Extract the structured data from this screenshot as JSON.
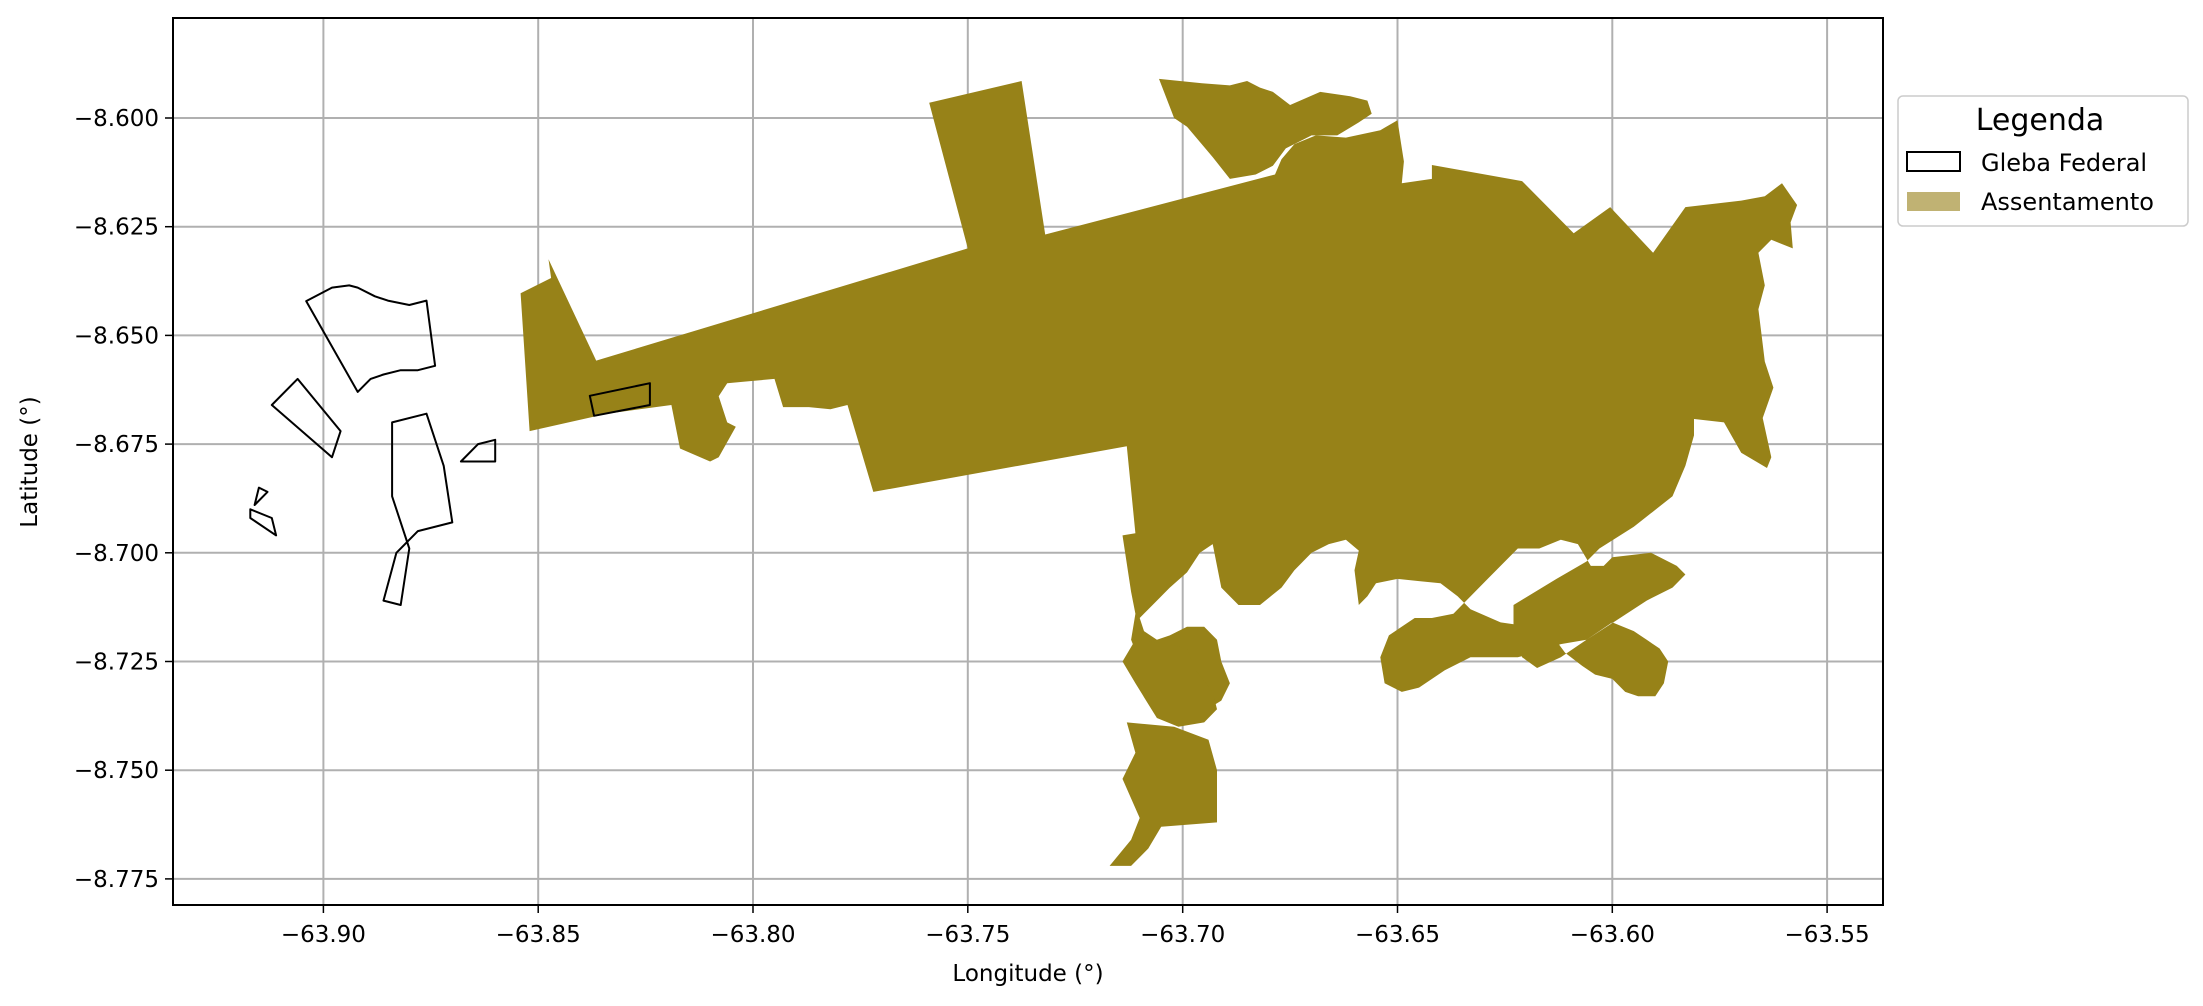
{
  "map": {
    "xlabel": "Longitude (°)",
    "ylabel": "Latitude (°)",
    "x_ticks": [
      -63.9,
      -63.85,
      -63.8,
      -63.75,
      -63.7,
      -63.65,
      -63.6,
      -63.55
    ],
    "x_tick_labels": [
      "−63.90",
      "−63.85",
      "−63.80",
      "−63.75",
      "−63.70",
      "−63.65",
      "−63.60",
      "−63.55"
    ],
    "y_ticks": [
      -8.6,
      -8.625,
      -8.65,
      -8.675,
      -8.7,
      -8.725,
      -8.75,
      -8.775
    ],
    "y_tick_labels": [
      "−8.600",
      "−8.625",
      "−8.650",
      "−8.675",
      "−8.700",
      "−8.725",
      "−8.750",
      "−8.775"
    ],
    "xlim": [
      -63.935,
      -63.537
    ],
    "ylim": [
      -8.781,
      -8.577
    ],
    "grid": true,
    "legend": {
      "title": "Legenda",
      "placement": "outside-right-top",
      "entries": [
        {
          "label": "Gleba Federal",
          "style": "outline",
          "color": "#000000"
        },
        {
          "label": "Assentamento",
          "style": "fill",
          "color": "#c0b273"
        }
      ]
    },
    "colors": {
      "assentamento_fill": "#978218",
      "gleba_stroke": "#000000",
      "grid": "#b0b0b0"
    },
    "layers": {
      "assentamento": [
        [
          [
            -63.8541,
            -8.6403
          ],
          [
            -63.847,
            -8.6368
          ],
          [
            -63.8476,
            -8.6325
          ],
          [
            -63.8365,
            -8.6558
          ],
          [
            -63.75,
            -8.63
          ],
          [
            -63.759,
            -8.5965
          ],
          [
            -63.7375,
            -8.5915
          ],
          [
            -63.732,
            -8.6268
          ],
          [
            -63.6785,
            -8.613
          ],
          [
            -63.677,
            -8.6095
          ],
          [
            -63.674,
            -8.606
          ],
          [
            -63.669,
            -8.604
          ],
          [
            -63.662,
            -8.6045
          ],
          [
            -63.654,
            -8.6028
          ],
          [
            -63.65,
            -8.6005
          ],
          [
            -63.6495,
            -8.6037
          ],
          [
            -63.6485,
            -8.61
          ],
          [
            -63.649,
            -8.615
          ],
          [
            -63.642,
            -8.614
          ],
          [
            -63.642,
            -8.6108
          ],
          [
            -63.621,
            -8.6145
          ],
          [
            -63.609,
            -8.6265
          ],
          [
            -63.6005,
            -8.6205
          ],
          [
            -63.5905,
            -8.631
          ],
          [
            -63.583,
            -8.6205
          ],
          [
            -63.57,
            -8.619
          ],
          [
            -63.5645,
            -8.618
          ],
          [
            -63.5605,
            -8.615
          ],
          [
            -63.557,
            -8.62
          ],
          [
            -63.5585,
            -8.624
          ],
          [
            -63.558,
            -8.63
          ],
          [
            -63.563,
            -8.628
          ],
          [
            -63.566,
            -8.631
          ],
          [
            -63.5645,
            -8.6385
          ],
          [
            -63.566,
            -8.644
          ],
          [
            -63.565,
            -8.652
          ],
          [
            -63.5645,
            -8.656
          ],
          [
            -63.5625,
            -8.662
          ],
          [
            -63.565,
            -8.669
          ],
          [
            -63.563,
            -8.678
          ],
          [
            -63.564,
            -8.6805
          ],
          [
            -63.57,
            -8.677
          ],
          [
            -63.574,
            -8.67
          ],
          [
            -63.583,
            -8.669
          ],
          [
            -63.586,
            -8.67
          ],
          [
            -63.59,
            -8.668
          ],
          [
            -63.596,
            -8.6665
          ],
          [
            -63.599,
            -8.662
          ],
          [
            -63.596,
            -8.661
          ],
          [
            -63.592,
            -8.659
          ],
          [
            -63.589,
            -8.657
          ],
          [
            -63.583,
            -8.66
          ],
          [
            -63.581,
            -8.665
          ],
          [
            -63.581,
            -8.673
          ],
          [
            -63.583,
            -8.68
          ],
          [
            -63.586,
            -8.687
          ],
          [
            -63.595,
            -8.694
          ],
          [
            -63.603,
            -8.699
          ],
          [
            -63.606,
            -8.702
          ],
          [
            -63.613,
            -8.706
          ],
          [
            -63.623,
            -8.712
          ],
          [
            -63.623,
            -8.7185
          ],
          [
            -63.621,
            -8.724
          ],
          [
            -63.6175,
            -8.7265
          ],
          [
            -63.612,
            -8.724
          ],
          [
            -63.606,
            -8.72
          ],
          [
            -63.599,
            -8.7155
          ],
          [
            -63.592,
            -8.711
          ],
          [
            -63.586,
            -8.708
          ],
          [
            -63.583,
            -8.705
          ],
          [
            -63.585,
            -8.703
          ],
          [
            -63.591,
            -8.7
          ],
          [
            -63.6,
            -8.701
          ],
          [
            -63.602,
            -8.703
          ],
          [
            -63.605,
            -8.703
          ],
          [
            -63.608,
            -8.698
          ],
          [
            -63.612,
            -8.697
          ],
          [
            -63.617,
            -8.699
          ],
          [
            -63.622,
            -8.699
          ],
          [
            -63.626,
            -8.703
          ],
          [
            -63.629,
            -8.706
          ],
          [
            -63.637,
            -8.714
          ],
          [
            -63.642,
            -8.715
          ],
          [
            -63.646,
            -8.715
          ],
          [
            -63.652,
            -8.719
          ],
          [
            -63.654,
            -8.724
          ],
          [
            -63.653,
            -8.73
          ],
          [
            -63.649,
            -8.732
          ],
          [
            -63.645,
            -8.731
          ],
          [
            -63.639,
            -8.727
          ],
          [
            -63.633,
            -8.724
          ],
          [
            -63.628,
            -8.724
          ],
          [
            -63.622,
            -8.724
          ],
          [
            -63.618,
            -8.723
          ],
          [
            -63.612,
            -8.721
          ],
          [
            -63.606,
            -8.72
          ],
          [
            -63.6,
            -8.716
          ],
          [
            -63.595,
            -8.718
          ],
          [
            -63.592,
            -8.72
          ],
          [
            -63.589,
            -8.722
          ],
          [
            -63.587,
            -8.725
          ],
          [
            -63.588,
            -8.73
          ],
          [
            -63.59,
            -8.733
          ],
          [
            -63.594,
            -8.733
          ],
          [
            -63.597,
            -8.732
          ],
          [
            -63.6,
            -8.729
          ],
          [
            -63.604,
            -8.728
          ],
          [
            -63.607,
            -8.726
          ],
          [
            -63.611,
            -8.723
          ],
          [
            -63.614,
            -8.719
          ],
          [
            -63.619,
            -8.717
          ],
          [
            -63.626,
            -8.716
          ],
          [
            -63.633,
            -8.713
          ],
          [
            -63.636,
            -8.71
          ],
          [
            -63.64,
            -8.707
          ],
          [
            -63.645,
            -8.7065
          ],
          [
            -63.65,
            -8.706
          ],
          [
            -63.655,
            -8.707
          ],
          [
            -63.657,
            -8.71
          ],
          [
            -63.659,
            -8.712
          ],
          [
            -63.66,
            -8.704
          ],
          [
            -63.659,
            -8.6995
          ],
          [
            -63.662,
            -8.697
          ],
          [
            -63.666,
            -8.698
          ],
          [
            -63.67,
            -8.7
          ],
          [
            -63.674,
            -8.704
          ],
          [
            -63.677,
            -8.708
          ],
          [
            -63.682,
            -8.712
          ],
          [
            -63.687,
            -8.712
          ],
          [
            -63.691,
            -8.708
          ],
          [
            -63.692,
            -8.703
          ],
          [
            -63.693,
            -8.698
          ],
          [
            -63.696,
            -8.7
          ],
          [
            -63.699,
            -8.7045
          ],
          [
            -63.703,
            -8.708
          ],
          [
            -63.707,
            -8.712
          ],
          [
            -63.71,
            -8.715
          ],
          [
            -63.709,
            -8.718
          ],
          [
            -63.706,
            -8.72
          ],
          [
            -63.703,
            -8.719
          ],
          [
            -63.699,
            -8.717
          ],
          [
            -63.695,
            -8.717
          ],
          [
            -63.692,
            -8.72
          ],
          [
            -63.691,
            -8.725
          ],
          [
            -63.689,
            -8.73
          ],
          [
            -63.691,
            -8.734
          ],
          [
            -63.696,
            -8.737
          ],
          [
            -63.701,
            -8.739
          ],
          [
            -63.704,
            -8.736
          ],
          [
            -63.708,
            -8.73
          ],
          [
            -63.712,
            -8.72
          ],
          [
            -63.711,
            -8.714
          ],
          [
            -63.712,
            -8.709
          ],
          [
            -63.714,
            -8.696
          ],
          [
            -63.711,
            -8.6955
          ],
          [
            -63.713,
            -8.6755
          ],
          [
            -63.772,
            -8.686
          ],
          [
            -63.778,
            -8.666
          ],
          [
            -63.782,
            -8.667
          ],
          [
            -63.787,
            -8.6665
          ],
          [
            -63.793,
            -8.6665
          ],
          [
            -63.795,
            -8.66
          ],
          [
            -63.806,
            -8.661
          ],
          [
            -63.808,
            -8.664
          ],
          [
            -63.806,
            -8.67
          ],
          [
            -63.804,
            -8.671
          ],
          [
            -63.808,
            -8.678
          ],
          [
            -63.81,
            -8.679
          ],
          [
            -63.817,
            -8.676
          ],
          [
            -63.819,
            -8.666
          ],
          [
            -63.834,
            -8.668
          ],
          [
            -63.852,
            -8.672
          ],
          [
            -63.8541,
            -8.6403
          ]
        ],
        [
          [
            -63.7055,
            -8.591
          ],
          [
            -63.6955,
            -8.592
          ],
          [
            -63.689,
            -8.5925
          ],
          [
            -63.685,
            -8.5915
          ],
          [
            -63.682,
            -8.593
          ],
          [
            -63.679,
            -8.594
          ],
          [
            -63.675,
            -8.597
          ],
          [
            -63.668,
            -8.594
          ],
          [
            -63.661,
            -8.595
          ],
          [
            -63.657,
            -8.596
          ],
          [
            -63.656,
            -8.599
          ],
          [
            -63.659,
            -8.601
          ],
          [
            -63.664,
            -8.604
          ],
          [
            -63.67,
            -8.604
          ],
          [
            -63.676,
            -8.607
          ],
          [
            -63.679,
            -8.611
          ],
          [
            -63.683,
            -8.613
          ],
          [
            -63.689,
            -8.614
          ],
          [
            -63.693,
            -8.609
          ],
          [
            -63.699,
            -8.602
          ],
          [
            -63.702,
            -8.6
          ],
          [
            -63.7055,
            -8.591
          ]
        ],
        [
          [
            -63.711,
            -8.72
          ],
          [
            -63.703,
            -8.721
          ],
          [
            -63.699,
            -8.722
          ],
          [
            -63.697,
            -8.727
          ],
          [
            -63.693,
            -8.732
          ],
          [
            -63.692,
            -8.736
          ],
          [
            -63.695,
            -8.739
          ],
          [
            -63.701,
            -8.74
          ],
          [
            -63.706,
            -8.738
          ],
          [
            -63.711,
            -8.73
          ],
          [
            -63.714,
            -8.725
          ],
          [
            -63.711,
            -8.72
          ]
        ],
        [
          [
            -63.702,
            -8.74
          ],
          [
            -63.694,
            -8.743
          ],
          [
            -63.692,
            -8.75
          ],
          [
            -63.692,
            -8.762
          ],
          [
            -63.705,
            -8.763
          ],
          [
            -63.708,
            -8.768
          ],
          [
            -63.712,
            -8.772
          ],
          [
            -63.717,
            -8.772
          ],
          [
            -63.712,
            -8.766
          ],
          [
            -63.71,
            -8.761
          ],
          [
            -63.714,
            -8.752
          ],
          [
            -63.711,
            -8.746
          ],
          [
            -63.713,
            -8.739
          ],
          [
            -63.702,
            -8.74
          ]
        ]
      ],
      "gleba_federal": [
        [
          [
            -63.904,
            -8.6421
          ],
          [
            -63.898,
            -8.639
          ],
          [
            -63.894,
            -8.6385
          ],
          [
            -63.892,
            -8.639
          ],
          [
            -63.888,
            -8.641
          ],
          [
            -63.885,
            -8.642
          ],
          [
            -63.88,
            -8.643
          ],
          [
            -63.876,
            -8.642
          ],
          [
            -63.874,
            -8.657
          ],
          [
            -63.878,
            -8.658
          ],
          [
            -63.882,
            -8.658
          ],
          [
            -63.886,
            -8.659
          ],
          [
            -63.889,
            -8.66
          ],
          [
            -63.892,
            -8.663
          ],
          [
            -63.904,
            -8.6421
          ]
        ],
        [
          [
            -63.906,
            -8.66
          ],
          [
            -63.912,
            -8.666
          ],
          [
            -63.898,
            -8.678
          ],
          [
            -63.896,
            -8.672
          ],
          [
            -63.906,
            -8.66
          ]
        ],
        [
          [
            -63.884,
            -8.67
          ],
          [
            -63.876,
            -8.668
          ],
          [
            -63.872,
            -8.68
          ],
          [
            -63.87,
            -8.693
          ],
          [
            -63.878,
            -8.695
          ],
          [
            -63.883,
            -8.7
          ],
          [
            -63.886,
            -8.711
          ],
          [
            -63.882,
            -8.712
          ],
          [
            -63.88,
            -8.699
          ],
          [
            -63.884,
            -8.687
          ],
          [
            -63.884,
            -8.67
          ]
        ],
        [
          [
            -63.864,
            -8.675
          ],
          [
            -63.86,
            -8.674
          ],
          [
            -63.86,
            -8.679
          ],
          [
            -63.868,
            -8.679
          ],
          [
            -63.864,
            -8.675
          ]
        ],
        [
          [
            -63.915,
            -8.685
          ],
          [
            -63.913,
            -8.686
          ],
          [
            -63.916,
            -8.689
          ],
          [
            -63.915,
            -8.685
          ]
        ],
        [
          [
            -63.917,
            -8.69
          ],
          [
            -63.912,
            -8.692
          ],
          [
            -63.911,
            -8.696
          ],
          [
            -63.917,
            -8.692
          ],
          [
            -63.917,
            -8.69
          ]
        ],
        [
          [
            -63.838,
            -8.6639
          ],
          [
            -63.824,
            -8.661
          ],
          [
            -63.824,
            -8.666
          ],
          [
            -63.837,
            -8.6685
          ],
          [
            -63.838,
            -8.6639
          ]
        ]
      ]
    }
  }
}
